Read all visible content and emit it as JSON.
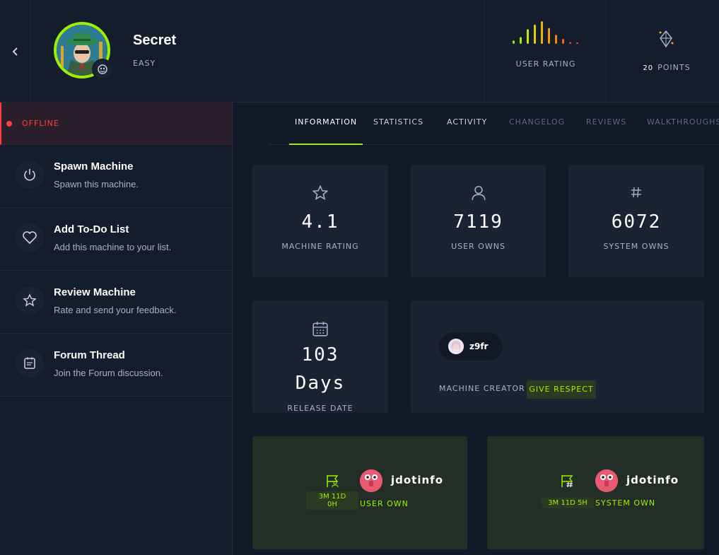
{
  "header": {
    "machine_name": "Secret",
    "difficulty": "EASY",
    "user_rating_label": "USER RATING",
    "points_value": "20",
    "points_label": "POINTS",
    "rating_bar_colors": [
      "#9fef00",
      "#9fef00",
      "#c5e900",
      "#e3cf00",
      "#f0b400",
      "#f59a00",
      "#f58a00",
      "#ff5a1f",
      "#ff3e3e",
      "#ff3e3e"
    ],
    "rating_bar_levels": [
      0.15,
      0.3,
      0.65,
      0.85,
      1.0,
      0.7,
      0.4,
      0.22,
      0.08,
      0.05
    ]
  },
  "sidebar": {
    "status": "OFFLINE",
    "items": [
      {
        "title": "Spawn Machine",
        "subtitle": "Spawn this machine.",
        "icon": "power-icon"
      },
      {
        "title": "Add To-Do List",
        "subtitle": "Add this machine to your list.",
        "icon": "heart-icon"
      },
      {
        "title": "Review Machine",
        "subtitle": "Rate and send your feedback.",
        "icon": "star-icon"
      },
      {
        "title": "Forum Thread",
        "subtitle": "Join the Forum discussion.",
        "icon": "forum-icon"
      }
    ]
  },
  "tabs": [
    {
      "label": "INFORMATION",
      "state": "active"
    },
    {
      "label": "STATISTICS",
      "state": "normal"
    },
    {
      "label": "ACTIVITY",
      "state": "normal"
    },
    {
      "label": "CHANGELOG",
      "state": "dim"
    },
    {
      "label": "REVIEWS",
      "state": "dim"
    },
    {
      "label": "WALKTHROUGHS",
      "state": "dim"
    }
  ],
  "stats": {
    "rating": {
      "value": "4.1",
      "label": "MACHINE RATING"
    },
    "user_owns": {
      "value": "7119",
      "label": "USER OWNS"
    },
    "system_owns": {
      "value": "6072",
      "label": "SYSTEM OWNS"
    },
    "release": {
      "value_line1": "103",
      "value_line2": "Days",
      "label": "RELEASE DATE"
    }
  },
  "creator": {
    "name": "z9fr",
    "label": "MACHINE CREATOR",
    "button": "GIVE RESPECT"
  },
  "first_bloods": {
    "user": {
      "time_line1": "3M 11D",
      "time_line2": "0H",
      "name": "jdotinfo",
      "label": "USER OWN"
    },
    "system": {
      "time": "3M 11D 5H",
      "name": "jdotinfo",
      "label": "SYSTEM OWN"
    }
  },
  "colors": {
    "accent": "#9fef00",
    "offline": "#ff3e3e",
    "card": "#1a2332",
    "background": "#111927"
  }
}
